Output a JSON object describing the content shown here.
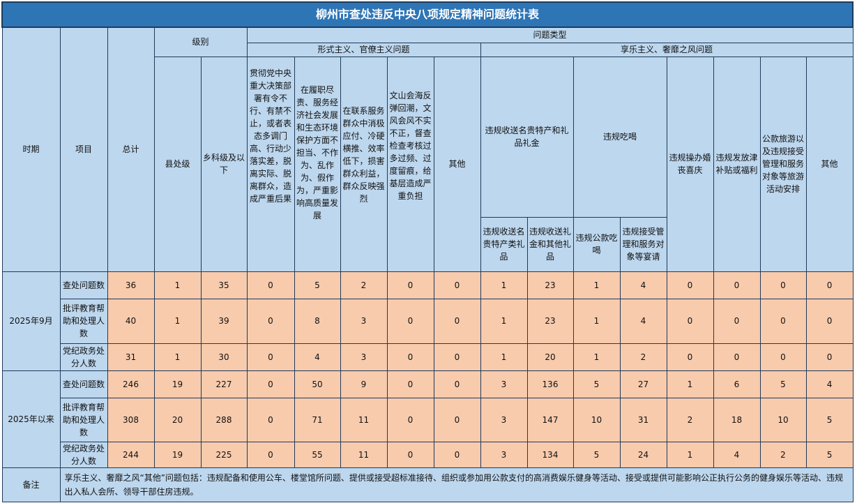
{
  "title": "柳州市查处违反中央八项规定精神问题统计表",
  "headers": {
    "period": "时期",
    "item": "项目",
    "total": "总计",
    "level": "级别",
    "problem_type": "问题类型",
    "formalism": "形式主义、官僚主义问题",
    "hedonism": "享乐主义、奢靡之风问题",
    "county": "县处级",
    "township": "乡科级及以下",
    "f1": "贯彻党中央重大决策部署有令不行、有禁不止，或者表态多调门高、行动少落实差，脱离实际、脱离群众，造成严重后果",
    "f2": "在履职尽责、服务经济社会发展和生态环境保护方面不担当、不作为、乱作为、假作为，严重影响高质量发展",
    "f3": "在联系服务群众中消极应付、冷硬横推、效率低下，损害群众利益，群众反映强烈",
    "f4": "文山会海反弹回潮，文风会风不实不正，督查检查考核过多过频、过度留痕，给基层造成严重负担",
    "f5": "其他",
    "h_gift": "违规收送名贵特产和礼品礼金",
    "h_gift1": "违规收送名贵特产类礼品",
    "h_gift2": "违规收送礼金和其他礼品",
    "h_eat": "违规吃喝",
    "h_eat1": "违规公款吃喝",
    "h_eat2": "违规接受管理和服务对象等宴请",
    "h_wed": "违规操办婚丧喜庆",
    "h_allow": "违规发放津补贴或福利",
    "h_travel": "公款旅游以及违规接受管理和服务对象等旅游活动安排",
    "h_other": "其他"
  },
  "groups": [
    {
      "period": "2025年9月",
      "rows": [
        {
          "item": "查处问题数",
          "values": [
            "36",
            "1",
            "35",
            "0",
            "5",
            "2",
            "0",
            "0",
            "1",
            "23",
            "1",
            "4",
            "0",
            "0",
            "0",
            "0"
          ]
        },
        {
          "item": "批评教育帮助和处理人数",
          "values": [
            "40",
            "1",
            "39",
            "0",
            "8",
            "3",
            "0",
            "0",
            "1",
            "23",
            "1",
            "4",
            "0",
            "0",
            "0",
            "0"
          ]
        },
        {
          "item": "党纪政务处分人数",
          "values": [
            "31",
            "1",
            "30",
            "0",
            "4",
            "3",
            "0",
            "0",
            "1",
            "20",
            "1",
            "2",
            "0",
            "0",
            "0",
            "0"
          ]
        }
      ]
    },
    {
      "period": "2025年以来",
      "rows": [
        {
          "item": "查处问题数",
          "values": [
            "246",
            "19",
            "227",
            "0",
            "50",
            "9",
            "0",
            "0",
            "3",
            "136",
            "5",
            "27",
            "1",
            "6",
            "5",
            "4"
          ]
        },
        {
          "item": "批评教育帮助和处理人数",
          "values": [
            "308",
            "20",
            "288",
            "0",
            "71",
            "11",
            "0",
            "0",
            "3",
            "147",
            "10",
            "31",
            "2",
            "18",
            "10",
            "5"
          ]
        },
        {
          "item": "党纪政务处分人数",
          "values": [
            "244",
            "19",
            "225",
            "0",
            "55",
            "11",
            "0",
            "0",
            "3",
            "134",
            "5",
            "24",
            "1",
            "4",
            "2",
            "5"
          ]
        }
      ]
    }
  ],
  "remark": {
    "label": "备注",
    "text": "享乐主义、奢靡之风“其他”问题包括：违规配备和使用公车、楼堂馆所问题、提供或接受超标准接待、组织或参加用公款支付的高消费娱乐健身等活动、接受或提供可能影响公正执行公务的健身娱乐等活动、违规出入私人会所、领导干部住房违规。"
  },
  "colors": {
    "header": "#bdd7ee",
    "title": "#2e75b6",
    "data": "#f8cbad"
  }
}
